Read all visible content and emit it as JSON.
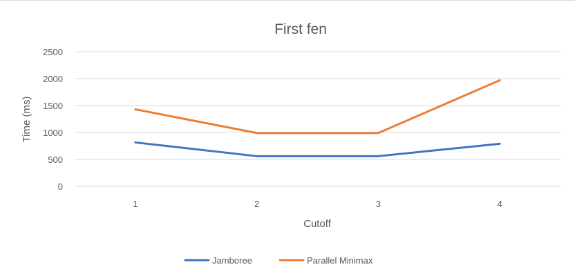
{
  "chart_data": {
    "type": "line",
    "title": "First fen",
    "xlabel": "Cutoff",
    "ylabel": "Time (ms)",
    "categories": [
      "1",
      "2",
      "3",
      "4"
    ],
    "ylim": [
      0,
      2500
    ],
    "yticks": [
      "0",
      "500",
      "1000",
      "1500",
      "2000",
      "2500"
    ],
    "grid": true,
    "legend_position": "bottom",
    "series": [
      {
        "name": "Jamboree",
        "color": "#4472c4",
        "values": [
          815,
          560,
          560,
          790
        ]
      },
      {
        "name": "Parallel Minimax",
        "color": "#ed7d31",
        "values": [
          1430,
          990,
          990,
          1970
        ]
      }
    ]
  }
}
